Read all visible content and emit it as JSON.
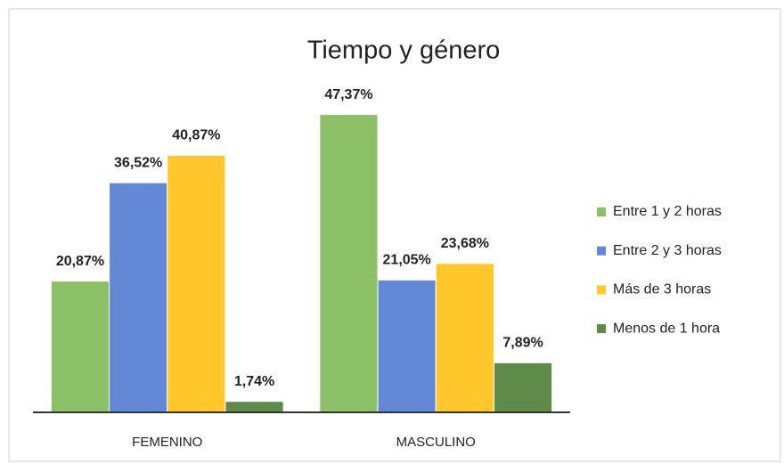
{
  "chart_data": {
    "type": "bar",
    "title": "Tiempo y género",
    "categories": [
      "FEMENINO",
      "MASCULINO"
    ],
    "ylim": [
      0,
      50
    ],
    "legend": "right",
    "series": [
      {
        "name": "Entre 1 y 2 horas",
        "color": "#8cc168",
        "values": [
          20.87,
          47.37
        ],
        "value_labels": [
          "20,87%",
          "47,37%"
        ]
      },
      {
        "name": "Entre 2 y 3 horas",
        "color": "#6389d6",
        "values": [
          36.52,
          21.05
        ],
        "value_labels": [
          "36,52%",
          "21,05%"
        ]
      },
      {
        "name": "Más de 3 horas",
        "color": "#ffc72c",
        "values": [
          40.87,
          23.68
        ],
        "value_labels": [
          "40,87%",
          "23,68%"
        ]
      },
      {
        "name": "Menos de 1 hora",
        "color": "#5e8b4a",
        "values": [
          1.74,
          7.89
        ],
        "value_labels": [
          "1,74%",
          "7,89%"
        ]
      }
    ]
  }
}
